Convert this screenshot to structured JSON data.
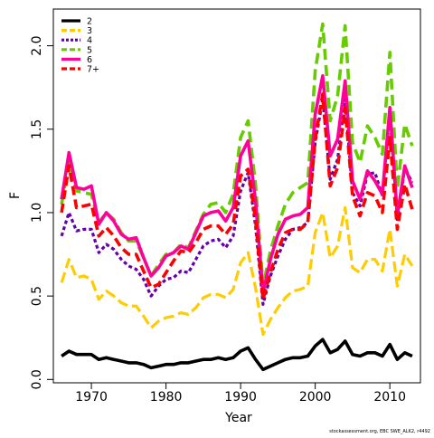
{
  "chart_data": {
    "type": "line",
    "xlabel": "Year",
    "ylabel": "F",
    "xlim": [
      1964.9,
      2014.1
    ],
    "ylim": [
      -0.02,
      2.22
    ],
    "x_ticks": [
      1970,
      1980,
      1990,
      2000,
      2010
    ],
    "x_tick_labels": [
      "1970",
      "1980",
      "1990",
      "2000",
      "2010"
    ],
    "y_ticks": [
      0.0,
      0.5,
      1.0,
      1.5,
      2.0
    ],
    "y_tick_labels": [
      "0.0",
      "0.5",
      "1.0",
      "1.5",
      "2.0"
    ],
    "legend_position": "top-left",
    "grid": false,
    "footer_note": "stockassessment.org, EBC SWE_ALK2, r4492",
    "x": [
      1966,
      1967,
      1968,
      1969,
      1970,
      1971,
      1972,
      1973,
      1974,
      1975,
      1976,
      1977,
      1978,
      1979,
      1980,
      1981,
      1982,
      1983,
      1984,
      1985,
      1986,
      1987,
      1988,
      1989,
      1990,
      1991,
      1992,
      1993,
      1994,
      1995,
      1996,
      1997,
      1998,
      1999,
      2000,
      2001,
      2002,
      2003,
      2004,
      2005,
      2006,
      2007,
      2008,
      2009,
      2010,
      2011,
      2012,
      2013
    ],
    "series": [
      {
        "name": "2",
        "color": "#000000",
        "dash": "solid",
        "width": 3.6,
        "values": [
          0.14,
          0.17,
          0.15,
          0.15,
          0.15,
          0.12,
          0.13,
          0.12,
          0.11,
          0.1,
          0.1,
          0.09,
          0.07,
          0.08,
          0.09,
          0.09,
          0.1,
          0.1,
          0.11,
          0.12,
          0.12,
          0.13,
          0.12,
          0.13,
          0.17,
          0.19,
          0.12,
          0.06,
          0.08,
          0.1,
          0.12,
          0.13,
          0.13,
          0.14,
          0.2,
          0.24,
          0.16,
          0.18,
          0.23,
          0.15,
          0.14,
          0.16,
          0.16,
          0.14,
          0.21,
          0.12,
          0.16,
          0.14
        ]
      },
      {
        "name": "3",
        "color": "#FFCC00",
        "dash": "12,5",
        "width": 3.2,
        "values": [
          0.58,
          0.72,
          0.61,
          0.62,
          0.6,
          0.48,
          0.53,
          0.5,
          0.46,
          0.44,
          0.44,
          0.38,
          0.31,
          0.35,
          0.37,
          0.38,
          0.4,
          0.39,
          0.43,
          0.49,
          0.51,
          0.51,
          0.49,
          0.54,
          0.7,
          0.76,
          0.55,
          0.27,
          0.36,
          0.43,
          0.49,
          0.53,
          0.54,
          0.56,
          0.88,
          1.0,
          0.73,
          0.8,
          1.03,
          0.67,
          0.64,
          0.72,
          0.72,
          0.65,
          0.9,
          0.56,
          0.75,
          0.68
        ]
      },
      {
        "name": "4",
        "color": "#6600AA",
        "dash": "4,3",
        "width": 3.2,
        "values": [
          0.86,
          1.0,
          0.89,
          0.9,
          0.9,
          0.76,
          0.81,
          0.78,
          0.72,
          0.68,
          0.66,
          0.6,
          0.5,
          0.56,
          0.6,
          0.61,
          0.65,
          0.64,
          0.72,
          0.8,
          0.83,
          0.84,
          0.79,
          0.86,
          1.13,
          1.24,
          0.92,
          0.45,
          0.62,
          0.74,
          0.84,
          0.9,
          0.91,
          0.94,
          1.42,
          1.68,
          1.2,
          1.32,
          1.68,
          1.12,
          1.04,
          1.23,
          1.24,
          1.1,
          1.6,
          0.95,
          1.27,
          1.18
        ]
      },
      {
        "name": "5",
        "color": "#66CC00",
        "dash": "12,6",
        "width": 3.6,
        "values": [
          1.05,
          1.3,
          1.13,
          1.12,
          1.11,
          0.94,
          1.0,
          0.96,
          0.88,
          0.83,
          0.83,
          0.73,
          0.62,
          0.69,
          0.75,
          0.76,
          0.81,
          0.79,
          0.89,
          0.99,
          1.05,
          1.06,
          1.0,
          1.11,
          1.45,
          1.55,
          1.17,
          0.56,
          0.77,
          0.92,
          1.05,
          1.12,
          1.15,
          1.18,
          1.85,
          2.13,
          1.55,
          1.7,
          2.12,
          1.42,
          1.3,
          1.52,
          1.45,
          1.35,
          1.96,
          1.14,
          1.53,
          1.4
        ]
      },
      {
        "name": "6",
        "color": "#FF0099",
        "dash": "solid",
        "width": 3.6,
        "values": [
          1.08,
          1.36,
          1.15,
          1.14,
          1.16,
          0.93,
          1.0,
          0.95,
          0.87,
          0.84,
          0.85,
          0.73,
          0.62,
          0.67,
          0.74,
          0.76,
          0.8,
          0.78,
          0.88,
          0.98,
          1.0,
          1.01,
          0.95,
          1.03,
          1.34,
          1.43,
          1.07,
          0.52,
          0.72,
          0.87,
          0.96,
          0.98,
          0.99,
          1.03,
          1.59,
          1.82,
          1.34,
          1.44,
          1.79,
          1.19,
          1.08,
          1.25,
          1.19,
          1.11,
          1.63,
          0.98,
          1.28,
          1.15
        ]
      },
      {
        "name": "7+",
        "color": "#FF0000",
        "dash": "10,5",
        "width": 3.6,
        "values": [
          1.0,
          1.28,
          1.03,
          1.04,
          1.05,
          0.86,
          0.91,
          0.86,
          0.79,
          0.75,
          0.75,
          0.65,
          0.55,
          0.57,
          0.64,
          0.71,
          0.77,
          0.76,
          0.82,
          0.9,
          0.92,
          0.92,
          0.87,
          0.93,
          1.22,
          1.26,
          0.96,
          0.48,
          0.64,
          0.78,
          0.88,
          0.9,
          0.9,
          0.94,
          1.44,
          1.71,
          1.16,
          1.27,
          1.63,
          1.1,
          0.98,
          1.12,
          1.1,
          1.0,
          1.45,
          0.9,
          1.17,
          1.02
        ]
      }
    ]
  }
}
